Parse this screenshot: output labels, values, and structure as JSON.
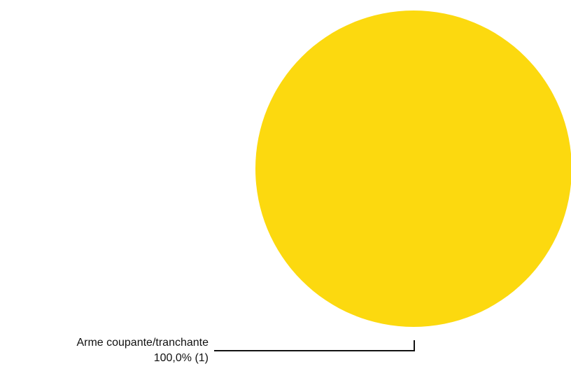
{
  "chart_data": {
    "type": "pie",
    "title": "",
    "slices": [
      {
        "label": "Arme coupante/tranchante",
        "value": 1,
        "percent_text": "100,0%",
        "count_text": "(1)",
        "color": "#FCD90F"
      }
    ],
    "legend": "none",
    "label_style": "callout-bottom-left"
  },
  "labels": {
    "slice_0": {
      "name": "Arme coupante/tranchante",
      "value_line": "100,0% (1)"
    }
  },
  "colors": {
    "leader_line": "#111111",
    "background": "#ffffff"
  }
}
